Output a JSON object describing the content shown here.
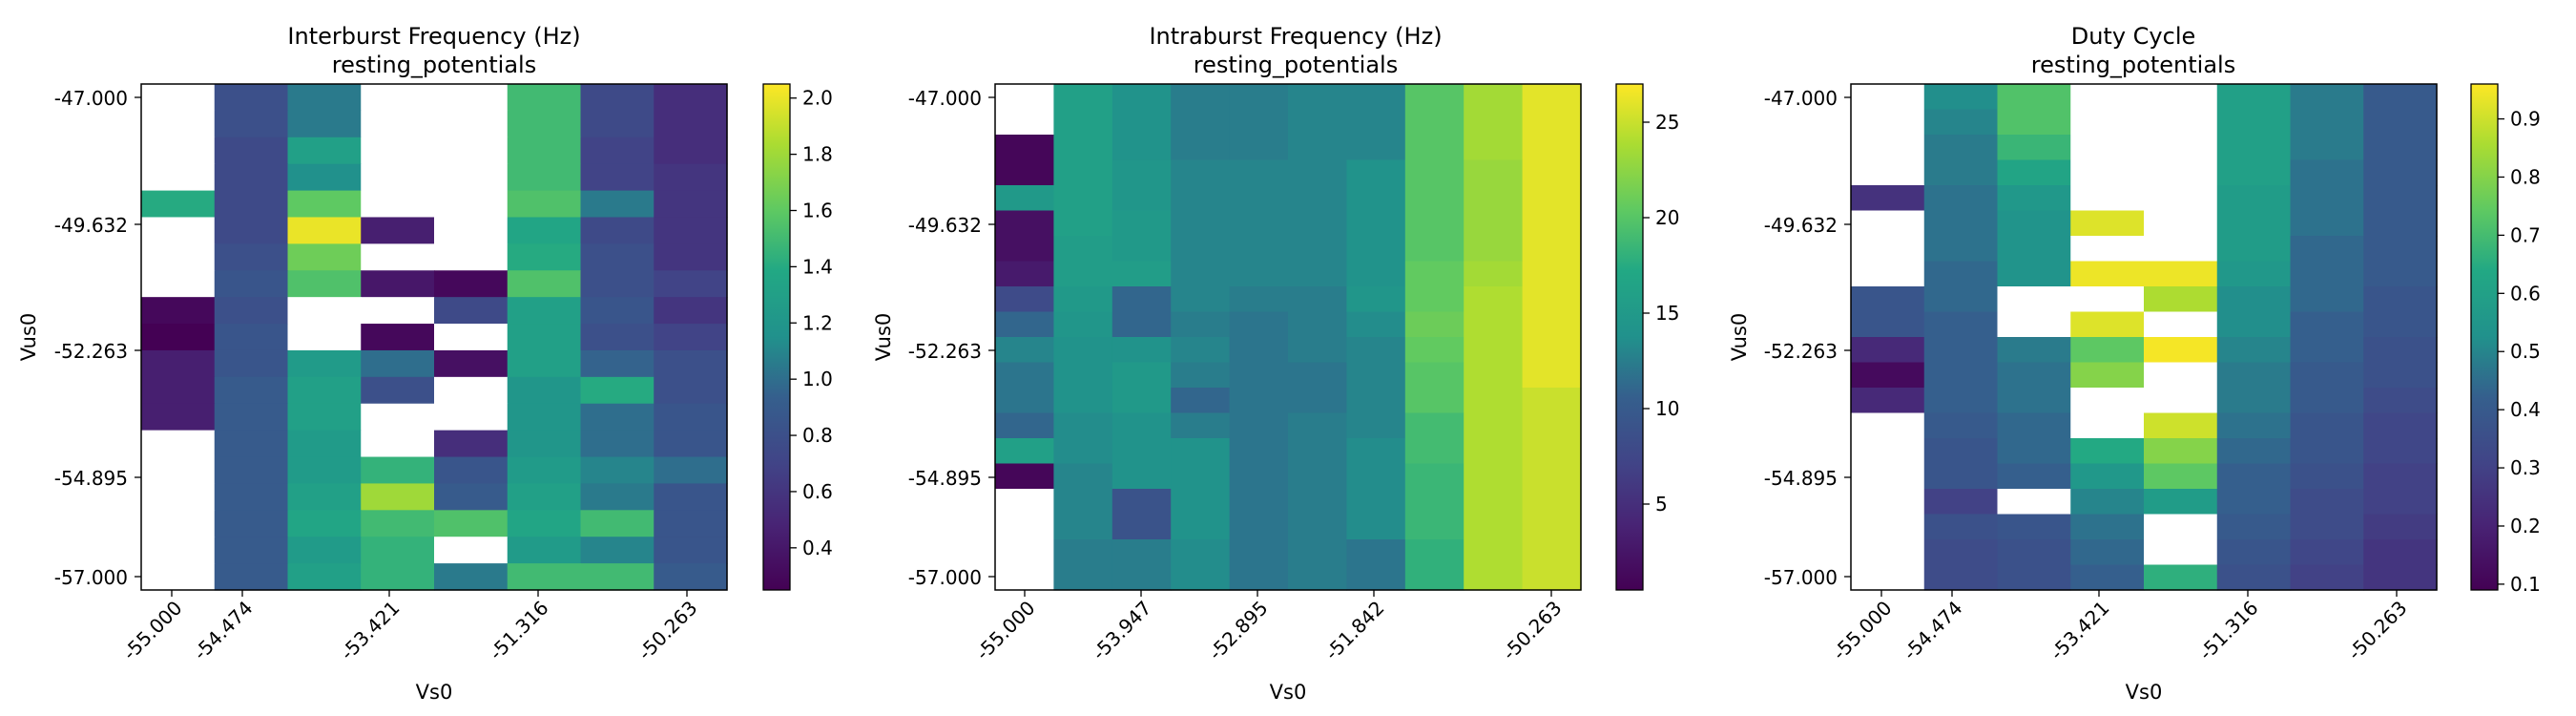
{
  "chart_data": [
    {
      "type": "heatmap",
      "title": "Interburst Frequency (Hz)",
      "subtitle": "resting_potentials",
      "xlabel": "Vs0",
      "ylabel": "Vus0",
      "x_tick_labels": [
        "-55.000",
        "-54.474",
        "-53.421",
        "-51.316",
        "-50.263"
      ],
      "y_tick_labels": [
        "-47.000",
        "-49.632",
        "-52.263",
        "-54.895",
        "-57.000"
      ],
      "colorbar": {
        "min": 0.25,
        "max": 2.05,
        "ticks": [
          "0.4",
          "0.6",
          "0.8",
          "1.0",
          "1.2",
          "1.4",
          "1.6",
          "1.8",
          "2.0"
        ]
      },
      "colormap": "viridis",
      "grid": false,
      "values": [
        [
          null,
          0.8,
          1.05,
          null,
          null,
          1.5,
          0.75,
          0.55
        ],
        [
          null,
          0.8,
          1.05,
          null,
          null,
          1.5,
          0.75,
          0.55
        ],
        [
          null,
          0.75,
          1.3,
          null,
          null,
          1.5,
          0.7,
          0.55
        ],
        [
          null,
          0.75,
          1.15,
          null,
          null,
          1.5,
          0.7,
          0.6
        ],
        [
          1.4,
          0.75,
          1.6,
          null,
          null,
          1.55,
          1.05,
          0.6
        ],
        [
          null,
          0.75,
          2.0,
          0.45,
          null,
          1.35,
          0.75,
          0.6
        ],
        [
          null,
          0.8,
          1.65,
          null,
          null,
          1.4,
          0.8,
          0.6
        ],
        [
          null,
          0.85,
          1.55,
          0.4,
          0.3,
          1.55,
          0.8,
          0.7
        ],
        [
          0.3,
          0.8,
          null,
          null,
          0.75,
          1.3,
          0.85,
          0.6
        ],
        [
          0.25,
          0.85,
          null,
          0.3,
          null,
          1.3,
          0.8,
          0.7
        ],
        [
          0.45,
          0.85,
          1.25,
          1.0,
          0.35,
          1.3,
          0.95,
          0.8
        ],
        [
          0.45,
          0.9,
          1.3,
          0.8,
          null,
          1.2,
          1.4,
          0.8
        ],
        [
          0.45,
          0.9,
          1.3,
          null,
          null,
          1.2,
          1.0,
          0.85
        ],
        [
          null,
          0.9,
          1.25,
          null,
          0.55,
          1.2,
          1.0,
          0.85
        ],
        [
          null,
          0.9,
          1.25,
          1.45,
          0.85,
          1.25,
          1.1,
          1.0
        ],
        [
          null,
          0.9,
          1.3,
          1.8,
          0.9,
          1.3,
          1.05,
          0.85
        ],
        [
          null,
          0.9,
          1.35,
          1.5,
          1.55,
          1.35,
          1.5,
          0.85
        ],
        [
          null,
          0.9,
          1.25,
          1.45,
          null,
          1.25,
          1.1,
          0.85
        ],
        [
          null,
          0.9,
          1.3,
          1.45,
          1.05,
          1.5,
          1.5,
          0.9
        ]
      ]
    },
    {
      "type": "heatmap",
      "title": "Intraburst Frequency (Hz)",
      "subtitle": "resting_potentials",
      "xlabel": "Vs0",
      "ylabel": "Vus0",
      "x_tick_labels": [
        "-55.000",
        "-53.947",
        "-52.895",
        "-51.842",
        "-50.263"
      ],
      "y_tick_labels": [
        "-47.000",
        "-49.632",
        "-52.263",
        "-54.895",
        "-57.000"
      ],
      "colorbar": {
        "min": 0.5,
        "max": 27,
        "ticks": [
          "5",
          "10",
          "15",
          "20",
          "25"
        ]
      },
      "colormap": "viridis",
      "grid": false,
      "values": [
        [
          null,
          16,
          14,
          12.5,
          12.5,
          13,
          13,
          20,
          23.5,
          26
        ],
        [
          null,
          16,
          14,
          12.5,
          12.5,
          13,
          13,
          20,
          23.5,
          26
        ],
        [
          1,
          16,
          14,
          12.5,
          12.5,
          13,
          13,
          20,
          23.5,
          26
        ],
        [
          1,
          16,
          14.5,
          13,
          13,
          13,
          14,
          20,
          23,
          26
        ],
        [
          15,
          16,
          14.5,
          13,
          13,
          13,
          14,
          20,
          23,
          26
        ],
        [
          2,
          16,
          15,
          13,
          13,
          13,
          14,
          20,
          23,
          26
        ],
        [
          2,
          15.5,
          15,
          13,
          13,
          13,
          14,
          20,
          23,
          26
        ],
        [
          3,
          15.5,
          15.5,
          13,
          13,
          13,
          14,
          20.5,
          23.5,
          26
        ],
        [
          8,
          15,
          11,
          13,
          12.5,
          12.5,
          14.5,
          20.5,
          24,
          26
        ],
        [
          11,
          14.5,
          11,
          12.5,
          12,
          12.5,
          13.5,
          21,
          24,
          26
        ],
        [
          13,
          14,
          14,
          13,
          12,
          12.5,
          13,
          20.5,
          24,
          26
        ],
        [
          12,
          14,
          15,
          12.5,
          12,
          12,
          13,
          20,
          24,
          26
        ],
        [
          12,
          14,
          15,
          11,
          12,
          12,
          13,
          20,
          24,
          25
        ],
        [
          11,
          13.5,
          14,
          12.5,
          12,
          12.5,
          13,
          19,
          24,
          25
        ],
        [
          16,
          13.5,
          14,
          14,
          12,
          12.5,
          13.5,
          19,
          24,
          25
        ],
        [
          1,
          13,
          14,
          14,
          12,
          12.5,
          13.5,
          18.5,
          24,
          25
        ],
        [
          null,
          13,
          9,
          14,
          12,
          12.5,
          13.5,
          18.5,
          24,
          25
        ],
        [
          null,
          13,
          9,
          14,
          12,
          12.5,
          13.5,
          18.5,
          24,
          25
        ],
        [
          null,
          12.5,
          12.5,
          13.5,
          12,
          12.5,
          12,
          18,
          24,
          25
        ],
        [
          null,
          12.5,
          12.5,
          13.5,
          12,
          12.5,
          12,
          18,
          24,
          25
        ]
      ]
    },
    {
      "type": "heatmap",
      "title": "Duty Cycle",
      "subtitle": "resting_potentials",
      "xlabel": "Vs0",
      "ylabel": "Vus0",
      "x_tick_labels": [
        "-55.000",
        "-54.474",
        "-53.421",
        "-51.316",
        "-50.263"
      ],
      "y_tick_labels": [
        "-47.000",
        "-49.632",
        "-52.263",
        "-54.895",
        "-57.000"
      ],
      "colorbar": {
        "min": 0.09,
        "max": 0.96,
        "ticks": [
          "0.1",
          "0.2",
          "0.3",
          "0.4",
          "0.5",
          "0.6",
          "0.7",
          "0.8",
          "0.9"
        ]
      },
      "colormap": "viridis",
      "grid": false,
      "values": [
        [
          null,
          0.52,
          0.72,
          null,
          null,
          0.6,
          0.48,
          0.4
        ],
        [
          null,
          0.5,
          0.72,
          null,
          null,
          0.6,
          0.48,
          0.4
        ],
        [
          null,
          0.48,
          0.68,
          null,
          null,
          0.6,
          0.48,
          0.4
        ],
        [
          null,
          0.48,
          0.62,
          null,
          null,
          0.6,
          0.46,
          0.4
        ],
        [
          0.25,
          0.46,
          0.56,
          null,
          null,
          0.58,
          0.46,
          0.4
        ],
        [
          null,
          0.46,
          0.54,
          0.92,
          null,
          0.58,
          0.46,
          0.4
        ],
        [
          null,
          0.46,
          0.54,
          null,
          null,
          0.58,
          0.44,
          0.4
        ],
        [
          null,
          0.44,
          0.54,
          0.94,
          0.94,
          0.56,
          0.44,
          0.4
        ],
        [
          0.38,
          0.44,
          null,
          null,
          0.86,
          0.52,
          0.44,
          0.38
        ],
        [
          0.38,
          0.42,
          null,
          0.92,
          null,
          0.52,
          0.42,
          0.38
        ],
        [
          0.22,
          0.42,
          0.48,
          0.74,
          0.95,
          0.5,
          0.42,
          0.36
        ],
        [
          0.12,
          0.42,
          0.46,
          0.8,
          null,
          0.48,
          0.4,
          0.36
        ],
        [
          0.22,
          0.42,
          0.46,
          null,
          null,
          0.48,
          0.4,
          0.34
        ],
        [
          null,
          0.4,
          0.44,
          null,
          0.9,
          0.46,
          0.38,
          0.32
        ],
        [
          null,
          0.38,
          0.44,
          0.64,
          0.8,
          0.44,
          0.38,
          0.32
        ],
        [
          null,
          0.38,
          0.42,
          0.56,
          0.74,
          0.42,
          0.36,
          0.3
        ],
        [
          null,
          0.3,
          null,
          0.5,
          0.58,
          0.42,
          0.34,
          0.3
        ],
        [
          null,
          0.36,
          0.38,
          0.46,
          null,
          0.4,
          0.34,
          0.28
        ],
        [
          null,
          0.34,
          0.36,
          0.44,
          null,
          0.38,
          0.32,
          0.26
        ],
        [
          null,
          0.34,
          0.36,
          0.42,
          0.66,
          0.36,
          0.3,
          0.26
        ]
      ]
    }
  ]
}
